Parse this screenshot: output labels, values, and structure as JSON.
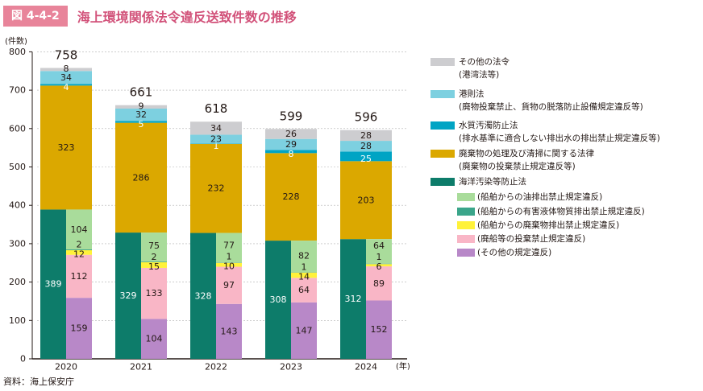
{
  "figure": {
    "number": "図 4-4-2",
    "title": "海上環境関係法令違反送致件数の推移",
    "source": "資料：海上保安庁"
  },
  "chart_data": {
    "type": "bar",
    "title": "海上環境関係法令違反送致件数の推移",
    "ylabel": "(件数)",
    "xlabel": "(年)",
    "ylim": [
      0,
      800
    ],
    "yticks": [
      0,
      100,
      200,
      300,
      400,
      500,
      600,
      700,
      800
    ],
    "categories": [
      "2020",
      "2021",
      "2022",
      "2023",
      "2024"
    ],
    "totals": [
      758,
      661,
      618,
      599,
      596
    ],
    "stack_series": [
      {
        "name": "海洋汚染等防止法",
        "color": "#0d7c6a",
        "values": [
          389,
          329,
          328,
          308,
          312
        ]
      },
      {
        "name": "廃棄物の処理及び清掃に関する法律",
        "color": "#dba800",
        "values": [
          323,
          286,
          232,
          228,
          203
        ]
      },
      {
        "name": "水質汚濁防止法",
        "color": "#00a4c4",
        "values": [
          4,
          5,
          1,
          8,
          25
        ]
      },
      {
        "name": "港則法",
        "color": "#7dd0e0",
        "values": [
          34,
          32,
          23,
          29,
          28
        ]
      },
      {
        "name": "その他の法令",
        "color": "#cdcdd0",
        "values": [
          8,
          9,
          34,
          26,
          28
        ]
      }
    ],
    "detail_series": [
      {
        "name": "(その他の規定違反)",
        "color": "#b888c8",
        "values": [
          159,
          104,
          143,
          147,
          152
        ]
      },
      {
        "name": "(廃船等の投棄禁止規定違反)",
        "color": "#f9b6c6",
        "values": [
          112,
          133,
          97,
          64,
          89
        ]
      },
      {
        "name": "(船舶からの廃棄物排出禁止規定違反)",
        "color": "#fff23a",
        "values": [
          12,
          15,
          10,
          14,
          6
        ]
      },
      {
        "name": "(船舶からの有害液体物質排出禁止規定違反)",
        "color": "#3aa58a",
        "values": [
          2,
          2,
          1,
          1,
          1
        ]
      },
      {
        "name": "(船舶からの油排出禁止規定違反)",
        "color": "#a9dc9b",
        "values": [
          104,
          75,
          77,
          82,
          64
        ]
      }
    ],
    "legend": [
      {
        "label": "その他の法令",
        "sub": "(港湾法等)",
        "color": "#cdcdd0"
      },
      {
        "label": "港則法",
        "sub": "(廃物投棄禁止、貨物の脱落防止設備規定違反等)",
        "color": "#7dd0e0"
      },
      {
        "label": "水質汚濁防止法",
        "sub": "(排水基準に適合しない排出水の排出禁止規定違反等)",
        "color": "#00a4c4"
      },
      {
        "label": "廃棄物の処理及び清掃に関する法律",
        "sub": "(廃棄物の投棄禁止規定違反等)",
        "color": "#dba800"
      },
      {
        "label": "海洋汚染等防止法",
        "sub": "",
        "color": "#0d7c6a"
      }
    ],
    "legend_sub": [
      {
        "label": "(船舶からの油排出禁止規定違反)",
        "color": "#a9dc9b"
      },
      {
        "label": "(船舶からの有害液体物質排出禁止規定違反)",
        "color": "#3aa58a"
      },
      {
        "label": "(船舶からの廃棄物排出禁止規定違反)",
        "color": "#fff23a"
      },
      {
        "label": "(廃船等の投棄禁止規定違反)",
        "color": "#f9b6c6"
      },
      {
        "label": "(その他の規定違反)",
        "color": "#b888c8"
      }
    ]
  }
}
